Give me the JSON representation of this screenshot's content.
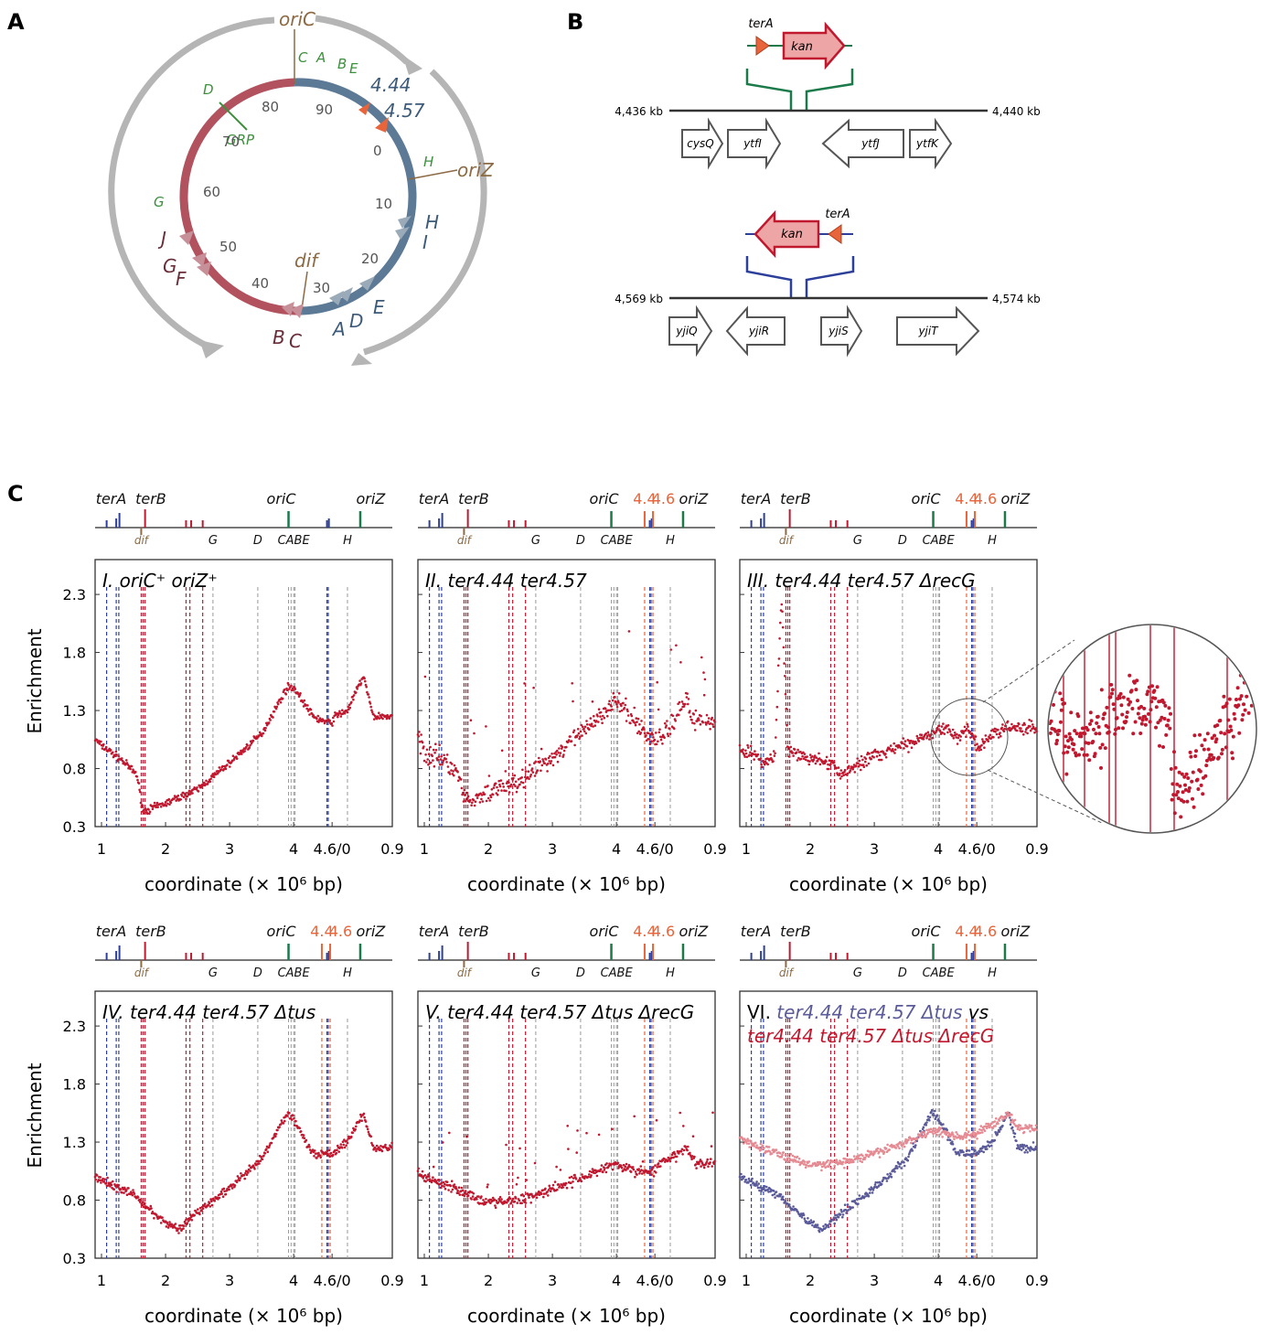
{
  "panel_labels": {
    "a": "A",
    "b": "B",
    "c": "C"
  },
  "panel_a": {
    "top_label": "oriC",
    "right_label": "oriZ",
    "bottom_label": "dif",
    "grp_label": "GRP",
    "ticks": [
      "0",
      "10",
      "20",
      "30",
      "40",
      "50",
      "60",
      "70",
      "80",
      "90"
    ],
    "ter_labels": {
      "site1": "4.44",
      "site2": "4.57"
    },
    "blue_ter": [
      "H",
      "I",
      "E",
      "A",
      "D",
      "C"
    ],
    "red_ter": [
      "B",
      "J",
      "G",
      "F"
    ],
    "green_sites": [
      "C",
      "A",
      "B",
      "E",
      "D",
      "H",
      "G"
    ]
  },
  "panel_b": {
    "top": {
      "ter": "terA",
      "cassette": "kan",
      "left_coord": "4,436 kb",
      "right_coord": "4,440 kb",
      "genes": [
        "cysQ",
        "ytfI",
        "ytfJ",
        "ytfK"
      ]
    },
    "bottom": {
      "ter": "terA",
      "cassette": "kan",
      "left_coord": "4,569 kb",
      "right_coord": "4,574 kb",
      "genes": [
        "yjiQ",
        "yjiR",
        "yjiS",
        "yjiT"
      ]
    }
  },
  "panel_c": {
    "y_axis_label": "Enrichment",
    "x_axis_label": "coordinate (× 10⁶ bp)",
    "x_ticks": [
      "1",
      "2",
      "3",
      "4",
      "4.6/0",
      "0.9"
    ],
    "y_ticks": [
      "2.3",
      "1.8",
      "1.3",
      "0.8",
      "0.3"
    ],
    "map_labels": {
      "terA": "terA",
      "terB": "terB",
      "oriC": "oriC",
      "oriZ": "oriZ",
      "s44": "4.4",
      "s46": "4.6",
      "dif": "dif",
      "G": "G",
      "D": "D",
      "CABE": "CABE",
      "H": "H"
    },
    "titles": [
      "I. oriC⁺ oriZ⁺",
      "II. ter4.44 ter4.57",
      "III. ter4.44 ter4.57 ΔrecG",
      "IV. ter4.44 ter4.57 Δtus",
      "V. ter4.44 ter4.57 Δtus ΔrecG",
      "VI."
    ],
    "title6_line1": "ter4.44 ter4.57 Δtus",
    "title6_vs": "vs",
    "title6_line2": "ter4.44 ter4.57 Δtus ΔrecG"
  },
  "colors": {
    "red_arc": "#b1525e",
    "blue_arc": "#5c7a96",
    "grey_arrow": "#b5b5b5",
    "brown": "#8c6a43",
    "green": "#3c8f3c",
    "data_red": "#c0182f",
    "data_pink": "#e58a92",
    "data_blue": "#5b5b9a",
    "ter_orange": "#e8643a",
    "ter_blue_line": "#2c3f9a"
  },
  "chart_data": [
    {
      "type": "scatter",
      "title": "I. oriC⁺ oriZ⁺",
      "xlabel": "coordinate (× 10⁶ bp)",
      "ylabel": "Enrichment",
      "ylim": [
        0.3,
        2.6
      ],
      "x": [
        1.0,
        1.3,
        1.55,
        1.65,
        2.0,
        2.5,
        3.0,
        3.5,
        3.9,
        4.0,
        4.3,
        4.5,
        4.6,
        0.0,
        0.2,
        0.45,
        0.6,
        0.9
      ],
      "values": [
        1.0,
        0.88,
        0.75,
        0.43,
        0.5,
        0.62,
        0.85,
        1.1,
        1.5,
        1.5,
        1.25,
        1.2,
        1.2,
        1.25,
        1.3,
        1.6,
        1.25,
        1.05
      ]
    },
    {
      "type": "scatter",
      "title": "II. ter4.44 ter4.57",
      "xlabel": "coordinate (× 10⁶ bp)",
      "ylabel": "Enrichment",
      "ylim": [
        0.3,
        2.6
      ],
      "x": [
        1.0,
        1.3,
        1.55,
        1.65,
        2.0,
        2.5,
        3.0,
        3.5,
        3.9,
        4.0,
        4.3,
        4.5,
        4.6,
        0.0,
        0.2,
        0.45,
        0.6,
        0.9
      ],
      "values": [
        0.95,
        0.88,
        0.72,
        0.5,
        0.58,
        0.7,
        0.9,
        1.12,
        1.35,
        1.38,
        1.2,
        1.08,
        1.05,
        1.05,
        1.15,
        1.4,
        1.2,
        1.05
      ]
    },
    {
      "type": "scatter",
      "title": "III. ter4.44 ter4.57 ΔrecG",
      "xlabel": "coordinate (× 10⁶ bp)",
      "ylabel": "Enrichment",
      "ylim": [
        0.3,
        2.6
      ],
      "x": [
        1.0,
        1.3,
        1.45,
        1.55,
        1.65,
        1.9,
        2.3,
        2.5,
        3.0,
        3.5,
        3.9,
        4.1,
        4.3,
        4.45,
        4.6,
        0.0,
        0.2,
        0.45,
        0.9
      ],
      "values": [
        0.95,
        0.85,
        0.9,
        2.3,
        0.95,
        0.9,
        0.85,
        0.75,
        0.92,
        1.0,
        1.12,
        1.15,
        1.05,
        1.15,
        1.0,
        0.98,
        1.1,
        1.15,
        0.98
      ]
    },
    {
      "type": "scatter",
      "title": "IV. ter4.44 ter4.57 Δtus",
      "xlabel": "coordinate (× 10⁶ bp)",
      "ylabel": "Enrichment",
      "ylim": [
        0.3,
        2.6
      ],
      "x": [
        1.0,
        1.5,
        2.0,
        2.2,
        2.5,
        3.0,
        3.5,
        3.9,
        4.0,
        4.3,
        4.6,
        0.0,
        0.2,
        0.45,
        0.6,
        0.9
      ],
      "values": [
        0.97,
        0.85,
        0.6,
        0.55,
        0.7,
        0.9,
        1.15,
        1.55,
        1.5,
        1.2,
        1.2,
        1.22,
        1.3,
        1.55,
        1.25,
        1.0
      ]
    },
    {
      "type": "scatter",
      "title": "V. ter4.44 ter4.57 Δtus ΔrecG",
      "xlabel": "coordinate (× 10⁶ bp)",
      "ylabel": "Enrichment",
      "ylim": [
        0.3,
        2.6
      ],
      "x": [
        1.0,
        1.5,
        2.0,
        2.5,
        3.0,
        3.5,
        3.9,
        4.0,
        4.3,
        4.6,
        0.0,
        0.2,
        0.45,
        0.6,
        0.9
      ],
      "values": [
        1.0,
        0.9,
        0.78,
        0.8,
        0.9,
        1.0,
        1.1,
        1.1,
        1.05,
        1.05,
        1.1,
        1.15,
        1.25,
        1.12,
        1.05
      ]
    },
    {
      "type": "scatter",
      "title": "VI.",
      "xlabel": "coordinate (× 10⁶ bp)",
      "ylabel": "Enrichment",
      "ylim": [
        0.3,
        2.6
      ],
      "series": [
        {
          "name": "ter4.44 ter4.57 Δtus",
          "x": [
            1.0,
            1.5,
            2.0,
            2.2,
            2.5,
            3.0,
            3.5,
            3.9,
            4.0,
            4.3,
            4.6,
            0.0,
            0.2,
            0.45,
            0.6,
            0.9
          ],
          "values": [
            0.97,
            0.85,
            0.6,
            0.55,
            0.7,
            0.9,
            1.15,
            1.55,
            1.5,
            1.2,
            1.2,
            1.22,
            1.3,
            1.55,
            1.25,
            1.0
          ]
        },
        {
          "name": "ter4.44 ter4.57 Δtus ΔrecG",
          "x": [
            1.0,
            1.5,
            2.0,
            2.5,
            3.0,
            3.5,
            3.9,
            4.0,
            4.3,
            4.6,
            0.0,
            0.2,
            0.45,
            0.6,
            0.9
          ],
          "values": [
            1.3,
            1.2,
            1.1,
            1.12,
            1.2,
            1.3,
            1.4,
            1.4,
            1.35,
            1.35,
            1.4,
            1.45,
            1.55,
            1.42,
            1.35
          ]
        }
      ]
    }
  ]
}
